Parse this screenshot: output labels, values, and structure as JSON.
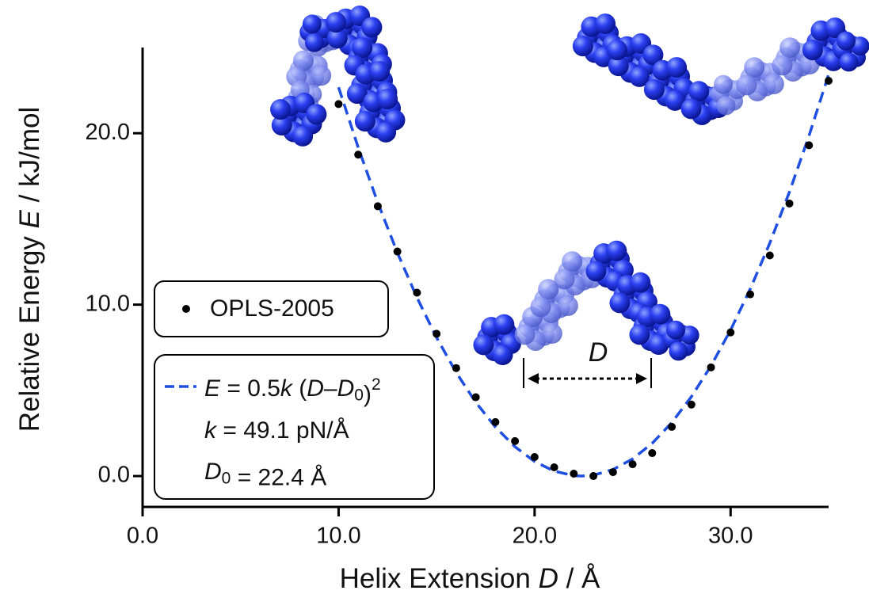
{
  "chart_data": {
    "type": "scatter",
    "x_label_parts": [
      {
        "text": "Helix Extension "
      },
      {
        "text": "D",
        "style": "italic"
      },
      {
        "text": " / Å"
      }
    ],
    "y_label_parts": [
      {
        "text": "Relative Energy "
      },
      {
        "text": "E",
        "style": "italic"
      },
      {
        "text": " / kJ/mol"
      }
    ],
    "xlim": [
      0,
      35
    ],
    "ylim": [
      -1.8,
      25
    ],
    "xticks": [
      {
        "value": 0,
        "label": "0.0"
      },
      {
        "value": 10,
        "label": "10.0"
      },
      {
        "value": 20,
        "label": "20.0"
      },
      {
        "value": 30,
        "label": "30.0"
      }
    ],
    "yticks": [
      {
        "value": 0,
        "label": "0.0"
      },
      {
        "value": 10,
        "label": "10.0"
      },
      {
        "value": 20,
        "label": "20.0"
      }
    ],
    "series": [
      {
        "name": "OPLS-2005",
        "color": "#000000",
        "marker": "dot",
        "x": [
          10,
          11,
          12,
          13,
          14,
          15,
          16,
          17,
          18,
          19,
          20,
          21,
          22,
          23,
          24,
          25,
          26,
          27,
          28,
          29,
          30,
          31,
          32,
          33,
          34,
          35
        ],
        "values": [
          21.7,
          18.75,
          15.74,
          13.1,
          10.7,
          8.3,
          6.3,
          4.6,
          3.15,
          2.04,
          1.11,
          0.51,
          0.14,
          0.0,
          0.23,
          0.69,
          1.34,
          2.87,
          4.17,
          6.34,
          8.38,
          10.6,
          12.87,
          15.9,
          19.3,
          23.06
        ]
      },
      {
        "name_parts": [
          {
            "text": "E",
            "style": "italic"
          },
          {
            "text": " = 0.5"
          },
          {
            "text": "k",
            "style": "italic"
          },
          {
            "text": " ("
          },
          {
            "text": "D",
            "style": "italic"
          },
          {
            "text": "–"
          },
          {
            "text": "D",
            "style": "italic"
          },
          {
            "text": "0",
            "style": "sub"
          },
          {
            "text": ")"
          },
          {
            "text": "2",
            "style": "sup"
          }
        ],
        "color": "#1f4fe0",
        "marker": "dashed-line",
        "x": [
          10,
          11,
          12,
          13,
          14,
          15,
          16,
          17,
          18,
          19,
          20,
          21,
          22,
          22.4,
          23,
          24,
          25,
          26,
          27,
          28,
          29,
          30,
          31,
          32,
          33,
          34,
          35
        ],
        "values": [
          22.68,
          19.17,
          15.95,
          13.03,
          10.41,
          8.08,
          6.04,
          4.3,
          2.86,
          1.71,
          0.85,
          0.29,
          0.02,
          0,
          0.05,
          0.38,
          1.0,
          1.91,
          3.12,
          4.63,
          6.43,
          8.52,
          10.91,
          13.59,
          16.57,
          19.85,
          23.42
        ]
      }
    ],
    "fit_parameters": [
      [
        {
          "text": "k",
          "style": "italic"
        },
        {
          "text": " = 49.1 pN/Å"
        }
      ],
      [
        {
          "text": "D",
          "style": "italic"
        },
        {
          "text": "0",
          "style": "sub"
        },
        {
          "text": " = 22.4 Å"
        }
      ]
    ],
    "distance_label": "D"
  }
}
